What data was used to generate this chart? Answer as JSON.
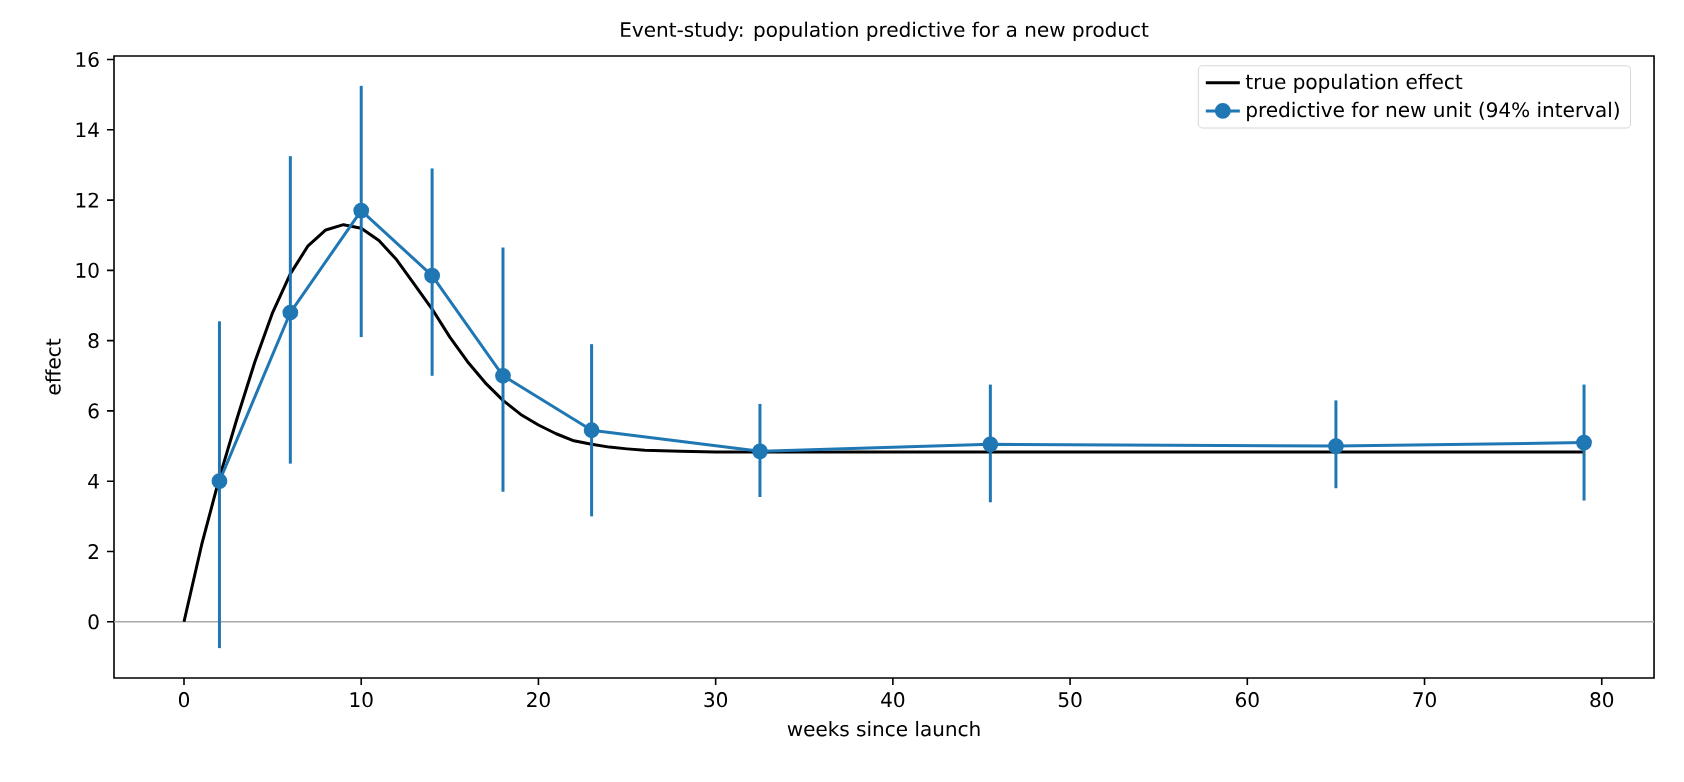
{
  "chart_data": {
    "type": "line",
    "title": "Event-study: population predictive for a new product",
    "xlabel": "weeks since launch",
    "ylabel": "effect",
    "xlim": [
      -3.95,
      82.95
    ],
    "xticks": [
      0,
      10,
      20,
      30,
      40,
      50,
      60,
      70,
      80
    ],
    "ylim": [
      -1.6,
      16.1
    ],
    "yticks": [
      0,
      2,
      4,
      6,
      8,
      10,
      12,
      14,
      16
    ],
    "legend": "top right",
    "ref_lines": [
      {
        "axis": "y",
        "value": 0,
        "color": "#aaaaaa"
      }
    ],
    "series": [
      {
        "name": "true population effect",
        "color": "#000000",
        "marker": "none",
        "x": [
          0,
          1,
          2,
          3,
          4,
          5,
          6,
          7,
          8,
          9,
          10,
          11,
          12,
          13,
          14,
          15,
          16,
          17,
          18,
          19,
          20,
          21,
          22,
          23,
          24,
          25,
          26,
          28,
          30,
          79
        ],
        "values": [
          0,
          2.2,
          4.1,
          5.8,
          7.4,
          8.8,
          9.9,
          10.7,
          11.15,
          11.3,
          11.2,
          10.85,
          10.3,
          9.6,
          8.9,
          8.1,
          7.4,
          6.8,
          6.3,
          5.9,
          5.6,
          5.35,
          5.15,
          5.05,
          4.97,
          4.92,
          4.88,
          4.85,
          4.83,
          4.83
        ]
      },
      {
        "name": "predictive for new unit (94% interval)",
        "color": "#1f77b4",
        "marker": "circle",
        "x": [
          2,
          6,
          10,
          14,
          18,
          23,
          32.5,
          45.5,
          65,
          79
        ],
        "values": [
          4.0,
          8.8,
          11.7,
          9.85,
          7.0,
          5.45,
          4.85,
          5.05,
          5.0,
          5.1
        ],
        "errors": [
          [
            -0.75,
            8.55
          ],
          [
            4.5,
            13.25
          ],
          [
            8.1,
            15.25
          ],
          [
            7.0,
            12.9
          ],
          [
            3.7,
            10.65
          ],
          [
            3.0,
            7.9
          ],
          [
            3.55,
            6.2
          ],
          [
            3.4,
            6.75
          ],
          [
            3.8,
            6.3
          ],
          [
            3.45,
            6.75
          ]
        ]
      }
    ]
  }
}
